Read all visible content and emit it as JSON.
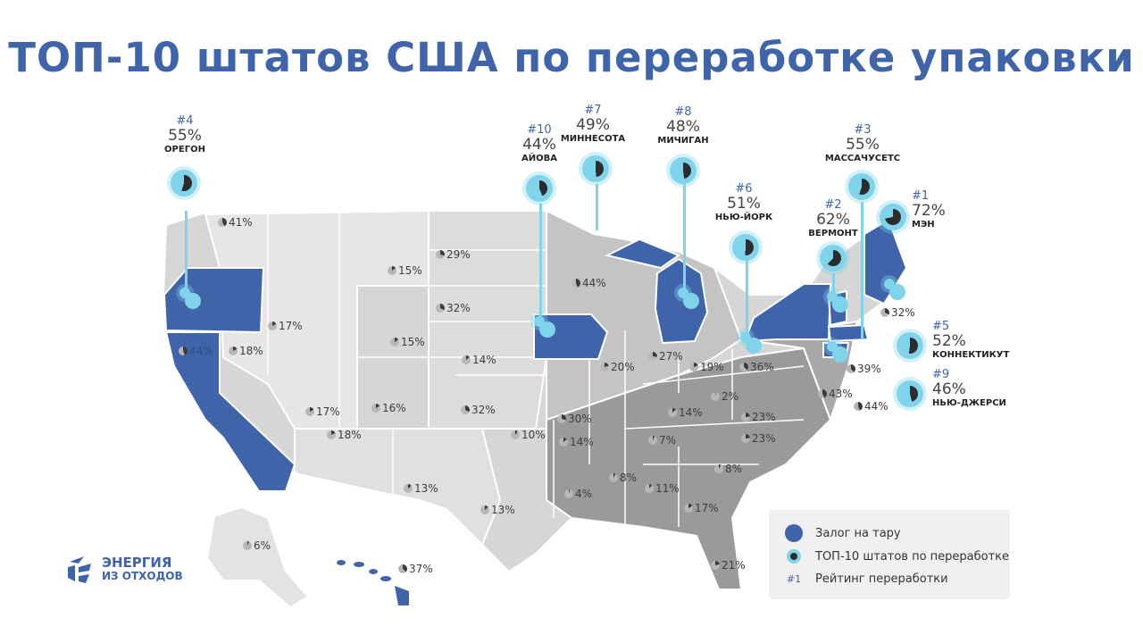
{
  "title": "ТОП-10 штатов США по переработке упаковки",
  "colors": {
    "accent": "#3f64aa",
    "top10": "#7fd3ea",
    "state_dark": "#8b8b8b",
    "state_mid": "#bdbdbd",
    "state_light": "#e3e3e3"
  },
  "top10": [
    {
      "rank": "#1",
      "pct": "72%",
      "name": "МЭН"
    },
    {
      "rank": "#2",
      "pct": "62%",
      "name": "ВЕРМОНТ"
    },
    {
      "rank": "#3",
      "pct": "55%",
      "name": "МАССАЧУСЕТС"
    },
    {
      "rank": "#4",
      "pct": "55%",
      "name": "ОРЕГОН"
    },
    {
      "rank": "#5",
      "pct": "52%",
      "name": "КОННЕКТИКУТ"
    },
    {
      "rank": "#6",
      "pct": "51%",
      "name": "НЬЮ-ЙОРК"
    },
    {
      "rank": "#7",
      "pct": "49%",
      "name": "МИННЕСОТА"
    },
    {
      "rank": "#8",
      "pct": "48%",
      "name": "МИЧИГАН"
    },
    {
      "rank": "#9",
      "pct": "46%",
      "name": "НЬЮ-ДЖЕРСИ"
    },
    {
      "rank": "#10",
      "pct": "44%",
      "name": "АЙОВА"
    }
  ],
  "state_rates": {
    "washington": "41%",
    "idaho": "15%",
    "montana": "",
    "northdakota": "29%",
    "southdakota": "32%",
    "wisconsin": "44%",
    "california": "44%",
    "nevada": "18%",
    "utah": "17%",
    "wyoming": "15%",
    "nebraska": "14%",
    "illinois": "20%",
    "indiana": "27%",
    "ohio": "19%",
    "pennsylvania": "36%",
    "colorado": "16%",
    "kansas": "32%",
    "missouri": "30%",
    "kentucky": "14%",
    "westvirginia": "2%",
    "virginia": "23%",
    "arizona": "18%",
    "oklahoma": "10%",
    "arkansas": "14%",
    "tennessee": "7%",
    "northcarolina": "23%",
    "newmexico": "13%",
    "texas": "13%",
    "mississippi": "8%",
    "alabama": "11%",
    "georgia": "17%",
    "southcarolina": "8%",
    "louisiana": "4%",
    "florida": "21%",
    "alaska": "6%",
    "hawaii": "37%",
    "newhampshire": "32%",
    "rhodeisland": "39%",
    "delaware": "43%",
    "maryland": "44%",
    "oregon_small": "17%"
  },
  "legend": {
    "deposit": "Залог на тару",
    "top10": "ТОП-10 штатов по переработке",
    "rank_mark": "#1",
    "ranking": "Рейтинг переработки"
  },
  "logo": {
    "line1": "ЭНЕРГИЯ",
    "line2": "ИЗ ОТХОДОВ"
  }
}
